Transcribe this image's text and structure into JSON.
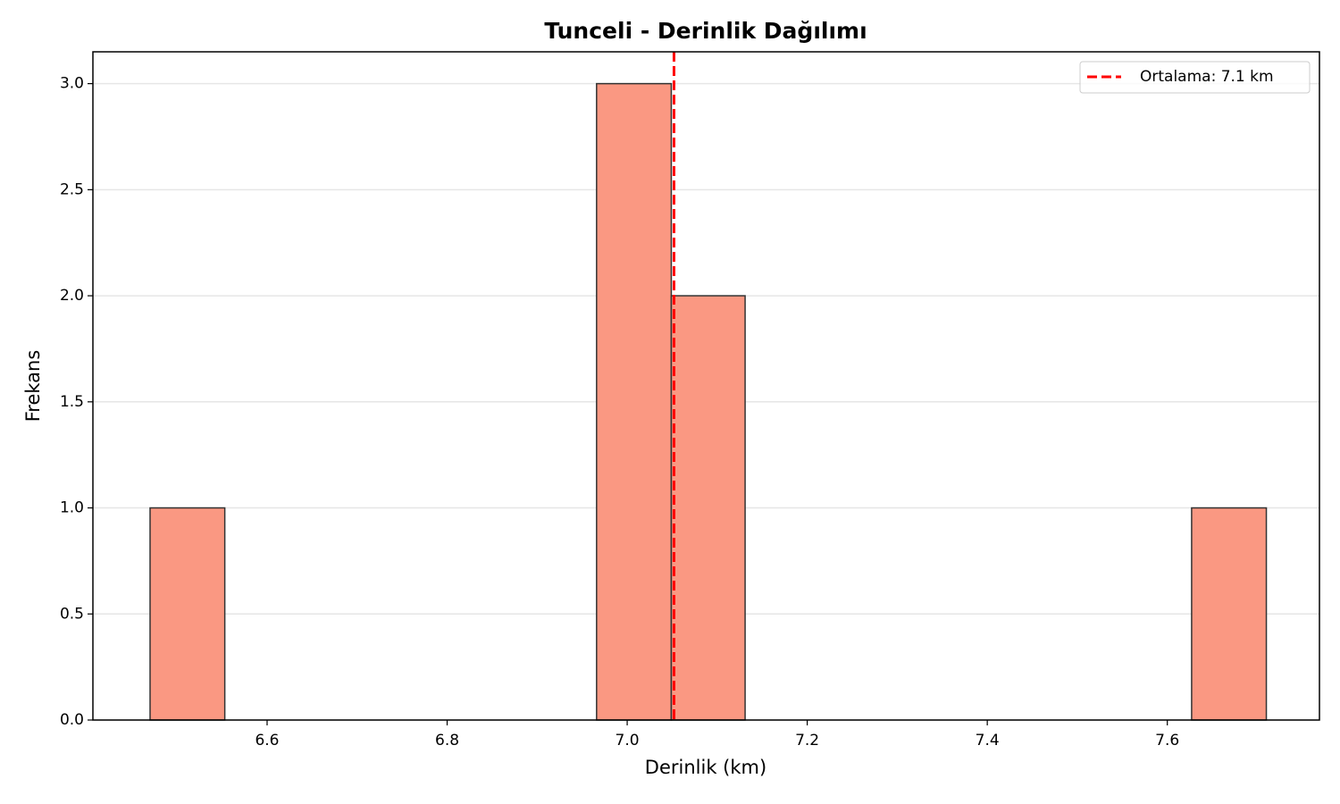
{
  "chart_data": {
    "type": "histogram",
    "title": "Tunceli - Derinlik Dağılımı",
    "x_label": "Derinlik (km)",
    "y_label": "Frekans",
    "bins": [
      6.47,
      6.553,
      6.635,
      6.718,
      6.801,
      6.883,
      6.966,
      7.049,
      7.131,
      7.214,
      7.297,
      7.379,
      7.462,
      7.545,
      7.627,
      7.71
    ],
    "values": [
      1,
      0,
      0,
      0,
      0,
      0,
      3,
      2,
      0,
      0,
      0,
      0,
      0,
      0,
      1
    ],
    "color": "#fa9882",
    "edge_color": "#333333",
    "xlim": [
      6.4065,
      7.769
    ],
    "ylim": [
      0,
      3.15
    ],
    "xticks": [
      6.6,
      6.8,
      {
        "value": 7.0,
        "label": "7.0"
      },
      7.2,
      7.4,
      7.6
    ],
    "yticks": [
      {
        "value": 0,
        "label": "0.0"
      },
      0.5,
      {
        "value": 1,
        "label": "1.0"
      },
      1.5,
      {
        "value": 2,
        "label": "2.0"
      },
      2.5,
      {
        "value": 3,
        "label": "3.0"
      }
    ],
    "grid": "y",
    "mean_line": {
      "value": 7.052,
      "label": "Ortalama: 7.1 km",
      "color": "#ff0000"
    },
    "legend": "upper right"
  }
}
